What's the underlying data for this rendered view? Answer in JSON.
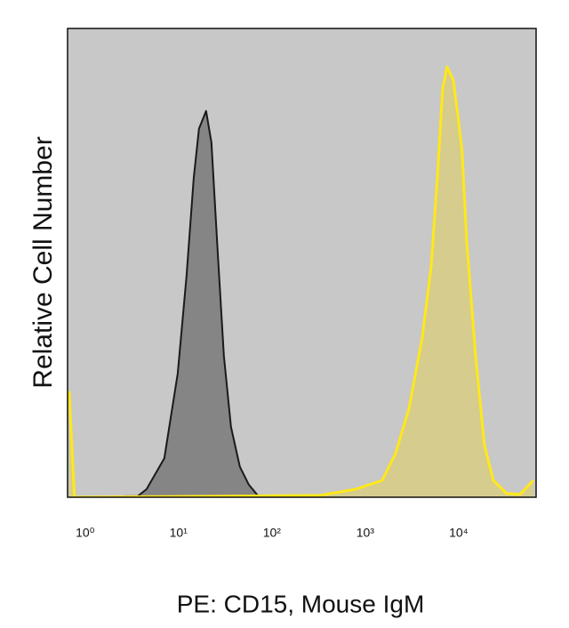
{
  "chart_data": {
    "type": "histogram-overlay",
    "xlabel": "PE: CD15, Mouse IgM",
    "ylabel": "Relative Cell Number",
    "xscale": "log",
    "xlim": [
      0.74,
      77000
    ],
    "ylim": [
      0,
      100
    ],
    "xticks": [
      {
        "value": 1,
        "label": "10⁰"
      },
      {
        "value": 10,
        "label": "10¹"
      },
      {
        "value": 100,
        "label": "10²"
      },
      {
        "value": 1000,
        "label": "10³"
      },
      {
        "value": 10000,
        "label": "10⁴"
      }
    ],
    "background": "#c8c8c8",
    "series": [
      {
        "color": "#1a1a1a",
        "fill": "#858585",
        "x": [
          3.0,
          4.16,
          5.18,
          8.03,
          11.2,
          13.9,
          16.6,
          18.9,
          22.5,
          25.7,
          29.9,
          34.9,
          41.6,
          51.8,
          64.5,
          80.3
        ],
        "values": [
          0.2,
          0.2,
          1.7,
          8.3,
          26.4,
          47.2,
          68.1,
          78.6,
          82.4,
          75.7,
          52.9,
          30.2,
          15.0,
          6.5,
          2.7,
          0.4
        ]
      },
      {
        "color": "#ffe81a",
        "fill": "#d6cc8e",
        "x": [
          0.769,
          0.877,
          373,
          896,
          1730,
          2400,
          3340,
          4640,
          5780,
          6740,
          7690,
          8570,
          10000,
          11200,
          12400,
          13900,
          17300,
          21500,
          26800,
          37300,
          51800,
          72000
        ],
        "values": [
          22.6,
          0,
          0.4,
          1.7,
          3.6,
          9.3,
          18.8,
          34.0,
          49.1,
          68.1,
          87.1,
          91.8,
          89.0,
          81.4,
          73.8,
          54.8,
          30.2,
          11.2,
          3.6,
          0.8,
          0.6,
          3.6
        ]
      }
    ]
  }
}
